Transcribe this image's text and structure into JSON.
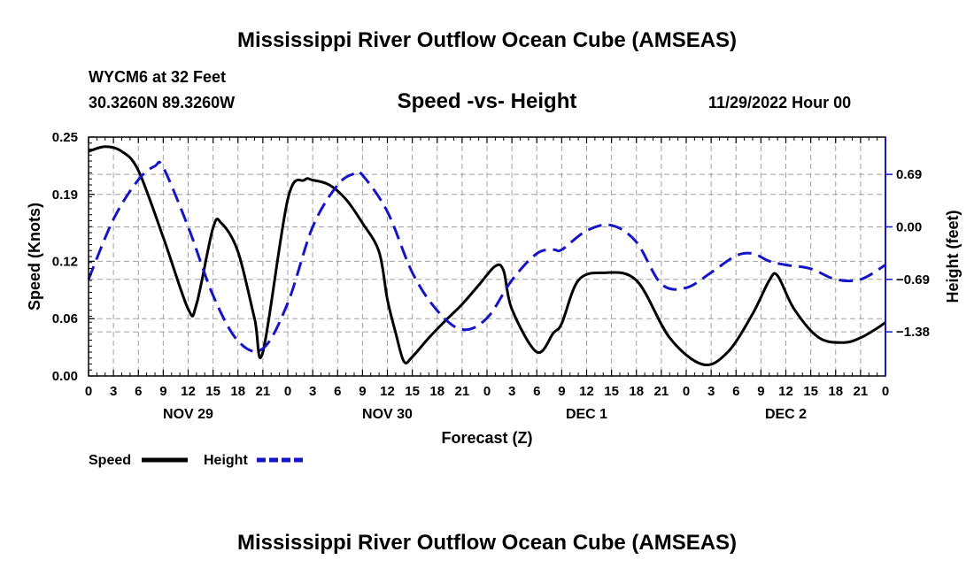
{
  "page": {
    "title": "Mississippi River Outflow Ocean Cube (AMSEAS)",
    "bottom_title": "Mississippi River Outflow Ocean Cube (AMSEAS)",
    "station": "WYCM6 at 32 Feet",
    "coords": "30.3260N  89.3260W",
    "subtitle": "Speed -vs- Height",
    "date": "11/29/2022 Hour 00"
  },
  "colors": {
    "speed": "#000000",
    "height": "#1515c8",
    "grid": "#a0a0a0"
  },
  "chart_data": {
    "type": "line",
    "title": "Speed -vs- Height",
    "xlabel": "Forecast (Z)",
    "ylabel": "Speed (Knots)",
    "y2label": "Height (feet)",
    "xlim": [
      0,
      96
    ],
    "ylim": [
      0,
      0.25
    ],
    "y2lim": [
      -1.96,
      1.18
    ],
    "x_ticks": [
      0,
      3,
      6,
      9,
      12,
      15,
      18,
      21,
      24,
      27,
      30,
      33,
      36,
      39,
      42,
      45,
      48,
      51,
      54,
      57,
      60,
      63,
      66,
      69,
      72,
      75,
      78,
      81,
      84,
      87,
      90,
      93,
      96
    ],
    "x_tick_labels": [
      "0",
      "3",
      "6",
      "9",
      "12",
      "15",
      "18",
      "21",
      "0",
      "3",
      "6",
      "9",
      "12",
      "15",
      "18",
      "21",
      "0",
      "3",
      "6",
      "9",
      "12",
      "15",
      "18",
      "21",
      "0",
      "3",
      "6",
      "9",
      "12",
      "15",
      "18",
      "21",
      "0"
    ],
    "day_labels": [
      {
        "x": 12,
        "label": "NOV 29"
      },
      {
        "x": 36,
        "label": "NOV 30"
      },
      {
        "x": 60,
        "label": "DEC 1"
      },
      {
        "x": 84,
        "label": "DEC 2"
      }
    ],
    "y_ticks": [
      0.0,
      0.06,
      0.12,
      0.19,
      0.25
    ],
    "y_tick_labels": [
      "0.00",
      "0.06",
      "0.12",
      "0.19",
      "0.25"
    ],
    "y2_ticks": [
      0.69,
      0.0,
      -0.69,
      -1.38
    ],
    "y2_tick_labels": [
      "0.69",
      "0.00",
      "−0.69",
      "−1.38"
    ],
    "grid": true,
    "series": [
      {
        "name": "Speed",
        "axis": "left",
        "style": "solid",
        "x": [
          0,
          2,
          4,
          6,
          9,
          12,
          13,
          15,
          16,
          18,
          20,
          21,
          24,
          26,
          27,
          29,
          31,
          33,
          35,
          36,
          37,
          38,
          39,
          41,
          43,
          45,
          47,
          49,
          50,
          51,
          54,
          56,
          57,
          59,
          62,
          66,
          70,
          74,
          77,
          80,
          82,
          83,
          85,
          88,
          91,
          93,
          95,
          96
        ],
        "y": [
          0.235,
          0.24,
          0.235,
          0.215,
          0.145,
          0.07,
          0.075,
          0.155,
          0.16,
          0.13,
          0.06,
          0.025,
          0.185,
          0.205,
          0.205,
          0.2,
          0.185,
          0.16,
          0.13,
          0.08,
          0.045,
          0.015,
          0.02,
          0.04,
          0.058,
          0.075,
          0.095,
          0.115,
          0.11,
          0.07,
          0.025,
          0.045,
          0.055,
          0.1,
          0.108,
          0.1,
          0.04,
          0.012,
          0.025,
          0.065,
          0.1,
          0.105,
          0.07,
          0.04,
          0.035,
          0.04,
          0.05,
          0.056
        ]
      },
      {
        "name": "Height",
        "axis": "right",
        "style": "dashed",
        "x": [
          0,
          3,
          6,
          8,
          9,
          12,
          15,
          18,
          21,
          24,
          27,
          30,
          32,
          33,
          36,
          39,
          42,
          45,
          48,
          51,
          54,
          56,
          57,
          60,
          63,
          66,
          69,
          72,
          75,
          78,
          80,
          82,
          84,
          87,
          90,
          93,
          96
        ],
        "y": [
          -0.69,
          0.1,
          0.62,
          0.8,
          0.78,
          0.0,
          -0.9,
          -1.5,
          -1.6,
          -1.0,
          0.0,
          0.55,
          0.7,
          0.68,
          0.2,
          -0.6,
          -1.1,
          -1.35,
          -1.2,
          -0.7,
          -0.35,
          -0.3,
          -0.3,
          -0.05,
          0.02,
          -0.2,
          -0.75,
          -0.8,
          -0.6,
          -0.38,
          -0.35,
          -0.45,
          -0.5,
          -0.55,
          -0.69,
          -0.69,
          -0.5
        ]
      }
    ],
    "legend": [
      {
        "label": "Speed",
        "style": "solid"
      },
      {
        "label": "Height",
        "style": "dashed"
      }
    ]
  }
}
